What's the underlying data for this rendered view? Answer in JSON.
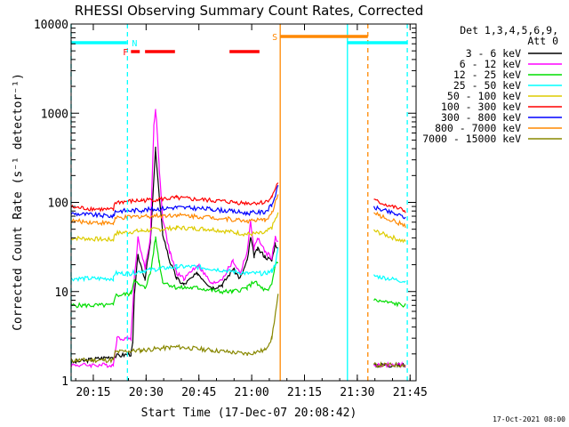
{
  "chart_data": {
    "type": "line",
    "title": "RHESSI Observing Summary Count Rates, Corrected",
    "ylabel": "Corrected Count Rate (s⁻¹ detector⁻¹)",
    "xlabel": "Start Time (17-Dec-07 20:08:42)",
    "x_units": "minutes since 20:08:42",
    "xlim": [
      0,
      98
    ],
    "ylim": [
      1,
      10000
    ],
    "yscale": "log",
    "x_ticks": [
      {
        "t": 6.3,
        "label": "20:15"
      },
      {
        "t": 21.3,
        "label": "20:30"
      },
      {
        "t": 36.3,
        "label": "20:45"
      },
      {
        "t": 51.3,
        "label": "21:00"
      },
      {
        "t": 66.3,
        "label": "21:15"
      },
      {
        "t": 81.3,
        "label": "21:30"
      },
      {
        "t": 96.3,
        "label": "21:45"
      }
    ],
    "y_ticks": [
      {
        "v": 1,
        "label": "1"
      },
      {
        "v": 10,
        "label": "10"
      },
      {
        "v": 100,
        "label": "100"
      },
      {
        "v": 1000,
        "label": "1000"
      },
      {
        "v": 10000,
        "label": "10000"
      }
    ],
    "legend_header": [
      "Det 1,3,4,5,6,9,",
      "Att 0"
    ],
    "series": [
      {
        "name": "3 - 6 keV",
        "color": "#000000",
        "points": [
          [
            0,
            1.6
          ],
          [
            17,
            2.0
          ],
          [
            17.5,
            2.6
          ],
          [
            18,
            10
          ],
          [
            19,
            25
          ],
          [
            21,
            14
          ],
          [
            22.5,
            35
          ],
          [
            24,
            400
          ],
          [
            25,
            120
          ],
          [
            26,
            45
          ],
          [
            28,
            22
          ],
          [
            30,
            14
          ],
          [
            32,
            12
          ],
          [
            36,
            16
          ],
          [
            40,
            11
          ],
          [
            43,
            12
          ],
          [
            46,
            18
          ],
          [
            48,
            14
          ],
          [
            50,
            22
          ],
          [
            51,
            40
          ],
          [
            52,
            25
          ],
          [
            53,
            30
          ],
          [
            55,
            25
          ],
          [
            57,
            22
          ],
          [
            58,
            35
          ],
          [
            58.8,
            30
          ],
          [
            null,
            null
          ],
          [
            86,
            1.5
          ],
          [
            95,
            1.5
          ]
        ]
      },
      {
        "name": "6 - 12 keV",
        "color": "#ff00ff",
        "points": [
          [
            0,
            1.5
          ],
          [
            12,
            1.5
          ],
          [
            13,
            3
          ],
          [
            17,
            3
          ],
          [
            18,
            15
          ],
          [
            19,
            40
          ],
          [
            21,
            18
          ],
          [
            22.5,
            40
          ],
          [
            23.5,
            700
          ],
          [
            24,
            1100
          ],
          [
            24.5,
            600
          ],
          [
            25,
            250
          ],
          [
            26,
            65
          ],
          [
            28,
            28
          ],
          [
            30,
            16
          ],
          [
            32,
            14
          ],
          [
            36,
            20
          ],
          [
            40,
            12
          ],
          [
            43,
            14
          ],
          [
            46,
            22
          ],
          [
            48,
            16
          ],
          [
            50,
            28
          ],
          [
            51,
            60
          ],
          [
            52,
            30
          ],
          [
            53,
            40
          ],
          [
            55,
            28
          ],
          [
            57,
            24
          ],
          [
            58,
            40
          ],
          [
            58.8,
            35
          ],
          [
            null,
            null
          ],
          [
            86,
            1.5
          ],
          [
            95,
            1.5
          ]
        ]
      },
      {
        "name": "12 - 25 keV",
        "color": "#00dd00",
        "points": [
          [
            0,
            7
          ],
          [
            12,
            7
          ],
          [
            12.5,
            9
          ],
          [
            17,
            9.5
          ],
          [
            18,
            14
          ],
          [
            19,
            12
          ],
          [
            21,
            11
          ],
          [
            22.5,
            16
          ],
          [
            24,
            40
          ],
          [
            25,
            22
          ],
          [
            26,
            13
          ],
          [
            30,
            11
          ],
          [
            36,
            11
          ],
          [
            42,
            10
          ],
          [
            46,
            10
          ],
          [
            50,
            11
          ],
          [
            52,
            13
          ],
          [
            54,
            11
          ],
          [
            56,
            10
          ],
          [
            57,
            12
          ],
          [
            58,
            20
          ],
          [
            58.8,
            22
          ],
          [
            null,
            null
          ],
          [
            86,
            8
          ],
          [
            95,
            7
          ]
        ]
      },
      {
        "name": "25 - 50 keV",
        "color": "#00ffff",
        "points": [
          [
            0,
            14
          ],
          [
            12,
            14
          ],
          [
            12.5,
            16
          ],
          [
            17,
            16
          ],
          [
            20,
            17
          ],
          [
            25,
            18
          ],
          [
            30,
            19
          ],
          [
            35,
            19
          ],
          [
            40,
            18
          ],
          [
            45,
            17
          ],
          [
            50,
            16
          ],
          [
            55,
            16
          ],
          [
            57,
            17
          ],
          [
            58,
            20
          ],
          [
            58.8,
            30
          ],
          [
            null,
            null
          ],
          [
            86,
            15
          ],
          [
            95,
            13
          ]
        ]
      },
      {
        "name": "50 - 100 keV",
        "color": "#ddcc00",
        "points": [
          [
            0,
            40
          ],
          [
            12,
            38
          ],
          [
            12.5,
            45
          ],
          [
            20,
            48
          ],
          [
            30,
            52
          ],
          [
            40,
            50
          ],
          [
            50,
            44
          ],
          [
            55,
            45
          ],
          [
            57,
            52
          ],
          [
            58.8,
            75
          ],
          [
            null,
            null
          ],
          [
            86,
            48
          ],
          [
            95,
            36
          ]
        ]
      },
      {
        "name": "100 - 300 keV",
        "color": "#ff0000",
        "points": [
          [
            0,
            88
          ],
          [
            12,
            82
          ],
          [
            12.5,
            100
          ],
          [
            20,
            105
          ],
          [
            30,
            112
          ],
          [
            40,
            105
          ],
          [
            50,
            98
          ],
          [
            55,
            100
          ],
          [
            57,
            115
          ],
          [
            58.8,
            170
          ],
          [
            null,
            null
          ],
          [
            86,
            105
          ],
          [
            95,
            80
          ]
        ]
      },
      {
        "name": "300 - 800 keV",
        "color": "#0000ff",
        "points": [
          [
            0,
            75
          ],
          [
            12,
            70
          ],
          [
            12.5,
            80
          ],
          [
            20,
            82
          ],
          [
            30,
            88
          ],
          [
            40,
            84
          ],
          [
            50,
            76
          ],
          [
            55,
            78
          ],
          [
            57,
            92
          ],
          [
            58.8,
            150
          ],
          [
            null,
            null
          ],
          [
            86,
            88
          ],
          [
            95,
            68
          ]
        ]
      },
      {
        "name": "800 - 7000 keV",
        "color": "#ff8800",
        "points": [
          [
            0,
            62
          ],
          [
            12,
            58
          ],
          [
            12.5,
            66
          ],
          [
            20,
            70
          ],
          [
            30,
            72
          ],
          [
            40,
            68
          ],
          [
            50,
            62
          ],
          [
            55,
            63
          ],
          [
            57,
            75
          ],
          [
            58.8,
            125
          ],
          [
            null,
            null
          ],
          [
            86,
            75
          ],
          [
            95,
            55
          ]
        ]
      },
      {
        "name": "7000 - 15000 keV",
        "color": "#888800",
        "points": [
          [
            0,
            1.7
          ],
          [
            12,
            1.7
          ],
          [
            12.5,
            2.1
          ],
          [
            20,
            2.2
          ],
          [
            30,
            2.4
          ],
          [
            40,
            2.2
          ],
          [
            50,
            2.0
          ],
          [
            55,
            2.2
          ],
          [
            57,
            3.0
          ],
          [
            58.8,
            9
          ],
          [
            null,
            null
          ],
          [
            86,
            1.5
          ],
          [
            95,
            1.5
          ]
        ]
      }
    ],
    "flag_bars": [
      {
        "label": "",
        "color": "#00ffff",
        "segments": [
          [
            0,
            15.8
          ],
          [
            78.5,
            95.5
          ]
        ]
      },
      {
        "label": "N",
        "color": "#00ffff",
        "segments": []
      },
      {
        "label": "S",
        "color": "#ff8800",
        "segments": [
          [
            59.4,
            84.3
          ]
        ]
      },
      {
        "label": "F",
        "color": "#ff0000",
        "segments": [
          [
            17,
            19.5
          ],
          [
            21,
            29.5
          ],
          [
            45,
            53.5
          ]
        ]
      }
    ],
    "marker_lines": [
      {
        "t": 0,
        "color": "#00ffff",
        "style": "dashed"
      },
      {
        "t": 16.0,
        "color": "#00ffff",
        "style": "dashed"
      },
      {
        "t": 59.4,
        "color": "#ff8800",
        "style": "solid"
      },
      {
        "t": 78.5,
        "color": "#00ffff",
        "style": "solid"
      },
      {
        "t": 84.3,
        "color": "#ff8800",
        "style": "dashed"
      },
      {
        "t": 95.5,
        "color": "#00ffff",
        "style": "dashed"
      }
    ]
  },
  "footer": {
    "stamp": "17-Oct-2021 08:00"
  }
}
